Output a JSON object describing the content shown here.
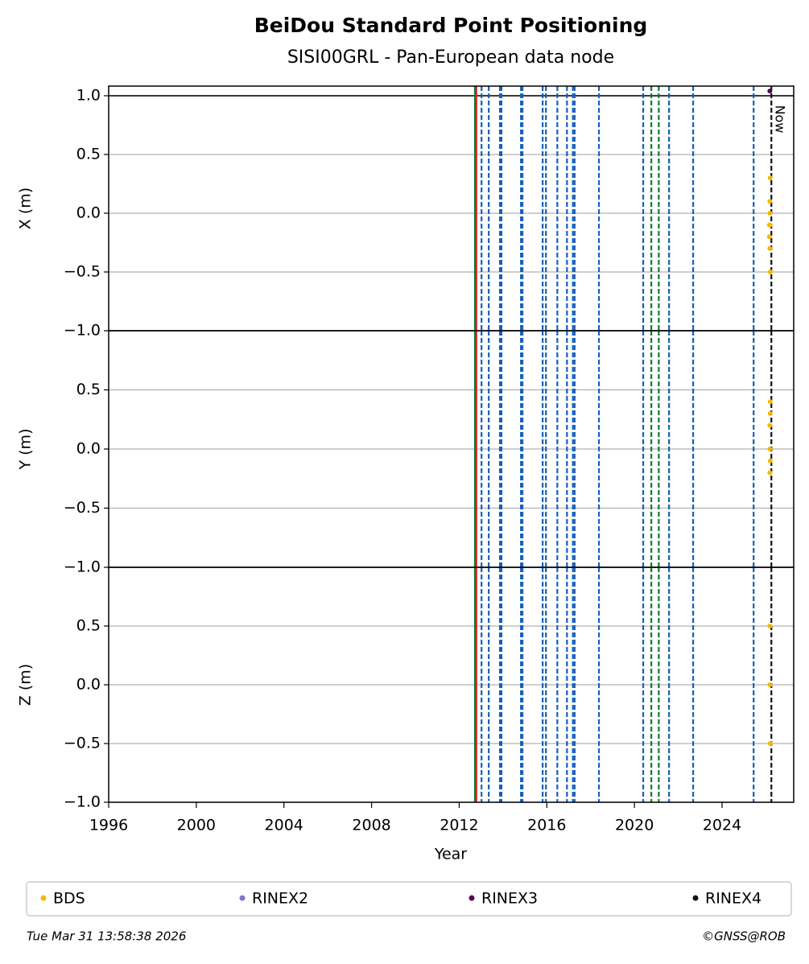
{
  "title": "BeiDou Standard Point Positioning",
  "subtitle": "SISI00GRL - Pan-European data node",
  "xlabel": "Year",
  "xlim": [
    1996,
    2027.27
  ],
  "xticks": [
    1996,
    2000,
    2004,
    2008,
    2012,
    2016,
    2020,
    2024
  ],
  "now_label": "Now",
  "events": [
    {
      "color": "#e31a1c",
      "dashed": false,
      "x": [
        2012.78
      ]
    },
    {
      "color": "#0f7a3a",
      "dashed": false,
      "x": [
        2012.72
      ]
    },
    {
      "color": "#1560bd",
      "dashed": true,
      "x": [
        2013.02,
        2013.35,
        2013.86,
        2013.93,
        2014.82,
        2014.89,
        2015.81,
        2015.96,
        2016.48,
        2016.92,
        2017.19,
        2017.27,
        2018.38,
        2020.4,
        2021.58,
        2022.68,
        2025.44
      ]
    },
    {
      "color": "#0f7a3a",
      "dashed": true,
      "x": [
        2020.77,
        2021.11
      ]
    },
    {
      "color": "#111111",
      "dashed": true,
      "x": [
        2026.25
      ]
    }
  ],
  "legend": [
    {
      "name": "BDS",
      "color": "#f5b800"
    },
    {
      "name": "RINEX2",
      "color": "#7b78c8"
    },
    {
      "name": "RINEX3",
      "color": "#5c0057"
    },
    {
      "name": "RINEX4",
      "color": "#1a0a1a"
    }
  ],
  "footer_left": "Tue Mar 31 13:58:38 2026",
  "footer_right": "©GNSS@ROB",
  "chart_data": [
    {
      "type": "scatter",
      "ylabel": "X (m)",
      "ylim": [
        -1.0,
        1.082
      ],
      "grid": true,
      "hlines": [
        1.0
      ],
      "yticks": [
        {
          "value": -1.0,
          "label": "−1.0"
        },
        {
          "value": -0.5,
          "label": "−0.5"
        },
        {
          "value": 0.0,
          "label": "0.0"
        },
        {
          "value": 0.5,
          "label": "0.5"
        },
        {
          "value": 1.0,
          "label": "1.0"
        }
      ],
      "series": [
        {
          "name": "BDS",
          "color": "#f5b800",
          "x": [
            2026.2,
            2026.18,
            2026.18,
            2026.16,
            2026.2,
            2026.16,
            2026.18,
            2026.2
          ],
          "values": [
            0.3,
            0.1,
            0.0,
            -0.1,
            -0.1,
            -0.2,
            -0.3,
            -0.5
          ]
        },
        {
          "name": "RINEX3",
          "color": "#5c0057",
          "x": [
            2026.18
          ],
          "values": [
            1.04
          ]
        }
      ]
    },
    {
      "type": "scatter",
      "ylabel": "Y (m)",
      "ylim": [
        -1.0,
        1.0
      ],
      "grid": true,
      "hlines": [],
      "yticks": [
        {
          "value": -1.0,
          "label": "−1.0"
        },
        {
          "value": -0.5,
          "label": "−0.5"
        },
        {
          "value": 0.0,
          "label": "0.0"
        },
        {
          "value": 0.5,
          "label": "0.5"
        }
      ],
      "series": [
        {
          "name": "BDS",
          "color": "#f5b800",
          "x": [
            2026.2,
            2026.2,
            2026.18,
            2026.18,
            2026.2,
            2026.18
          ],
          "values": [
            0.4,
            0.3,
            0.2,
            0.0,
            -0.1,
            -0.2
          ]
        }
      ]
    },
    {
      "type": "scatter",
      "ylabel": "Z (m)",
      "ylim": [
        -1.0,
        1.0
      ],
      "grid": true,
      "hlines": [],
      "yticks": [
        {
          "value": -1.0,
          "label": "−1.0"
        },
        {
          "value": -0.5,
          "label": "−0.5"
        },
        {
          "value": 0.0,
          "label": "0.0"
        },
        {
          "value": 0.5,
          "label": "0.5"
        }
      ],
      "series": [
        {
          "name": "BDS",
          "color": "#f5b800",
          "x": [
            2026.18,
            2026.18,
            2026.2
          ],
          "values": [
            0.5,
            0.0,
            -0.5
          ]
        }
      ]
    }
  ]
}
